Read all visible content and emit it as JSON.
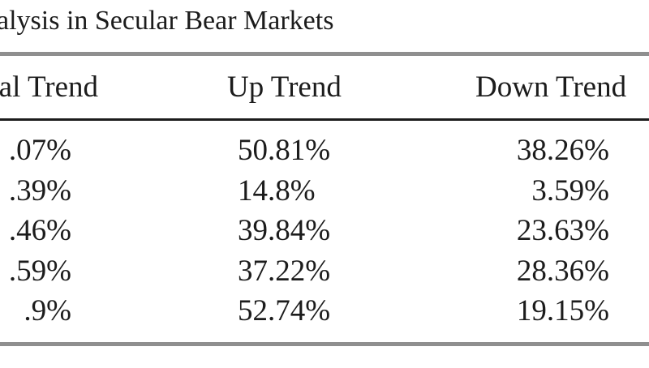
{
  "title": "alysis in Secular Bear Markets",
  "table": {
    "headers": [
      "al Trend",
      "Up Trend",
      "Down Trend"
    ],
    "rows": [
      [
        ".07%",
        "50.81%",
        "38.26%"
      ],
      [
        ".39%",
        "14.8%",
        "3.59%"
      ],
      [
        ".46%",
        "39.84%",
        "23.63%"
      ],
      [
        ".59%",
        "37.22%",
        "28.36%"
      ],
      [
        ".9%",
        "52.74%",
        "19.15%"
      ]
    ]
  },
  "colors": {
    "text": "#1c1c1c",
    "heavy_rule": "#8f8f8f",
    "thin_rule": "#1c1c1c"
  }
}
